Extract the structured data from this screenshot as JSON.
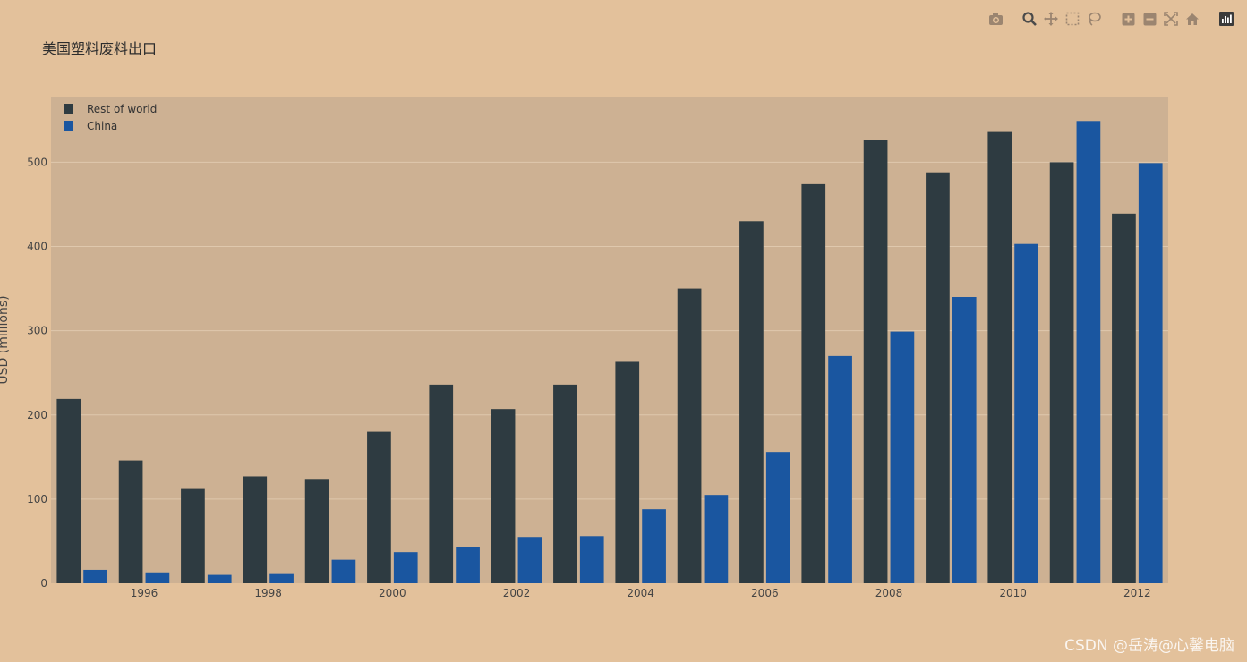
{
  "modebar": {
    "icons": [
      "camera-icon",
      "zoom-icon",
      "pan-icon",
      "box-select-icon",
      "lasso-select-icon",
      "zoom-in-icon",
      "zoom-out-icon",
      "autoscale-icon",
      "reset-axes-icon",
      "plotly-logo-icon"
    ]
  },
  "watermark": "CSDN @岳涛@心馨电脑",
  "colors": {
    "background": "#e3c19b",
    "plot_background": "#cdb193",
    "rest_of_world": "#2e3b41",
    "china": "#1a56a0",
    "grid": "#dfc8ad"
  },
  "chart_data": {
    "type": "bar",
    "title": "美国塑料废料出口",
    "xlabel": "",
    "ylabel": "USD (millions)",
    "x": [
      1995,
      1996,
      1997,
      1998,
      1999,
      2000,
      2001,
      2002,
      2003,
      2004,
      2005,
      2006,
      2007,
      2008,
      2009,
      2010,
      2011,
      2012
    ],
    "x_ticks": [
      1996,
      1998,
      2000,
      2002,
      2004,
      2006,
      2008,
      2010,
      2012
    ],
    "y_ticks": [
      0,
      100,
      200,
      300,
      400,
      500
    ],
    "ylim": [
      0,
      578
    ],
    "xlim": [
      1994.5,
      2012.5
    ],
    "grid": true,
    "legend_position": "top-left",
    "series": [
      {
        "name": "Rest of world",
        "values": [
          219,
          146,
          112,
          127,
          124,
          180,
          236,
          207,
          236,
          263,
          350,
          430,
          474,
          526,
          488,
          537,
          500,
          439
        ]
      },
      {
        "name": "China",
        "values": [
          16,
          13,
          10,
          11,
          28,
          37,
          43,
          55,
          56,
          88,
          105,
          156,
          270,
          299,
          340,
          403,
          549,
          499
        ]
      }
    ]
  }
}
